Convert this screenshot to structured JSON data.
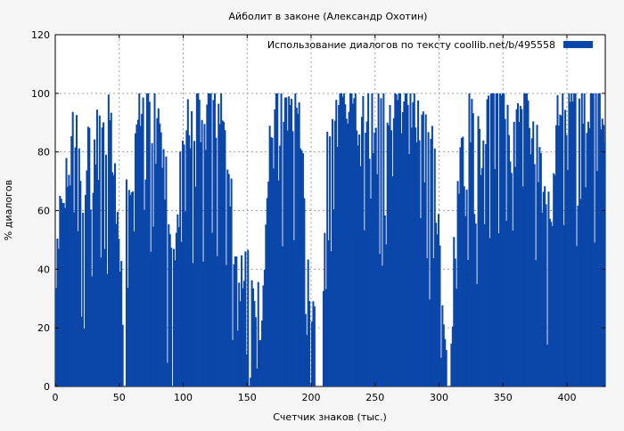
{
  "chart_data": {
    "type": "bar",
    "title": "Айболит в законе (Александр Охотин)",
    "xlabel": "Счетчик знаков (тыс.)",
    "ylabel": "% диалогов",
    "xlim": [
      0,
      430
    ],
    "ylim": [
      0,
      120
    ],
    "xticks": [
      "0",
      "50",
      "100",
      "150",
      "200",
      "250",
      "300",
      "350",
      "400"
    ],
    "yticks": [
      "0",
      "20",
      "40",
      "60",
      "80",
      "100",
      "120"
    ],
    "grid": true,
    "legend_position": "top-right",
    "series": [
      {
        "name": "Использование диалогов по тексту  coollib.net/b/495558",
        "color": "#0a47a9",
        "bin_width": 1,
        "envelope": [
          [
            0,
            36
          ],
          [
            3,
            45
          ],
          [
            6,
            70
          ],
          [
            10,
            60
          ],
          [
            14,
            90
          ],
          [
            18,
            85
          ],
          [
            22,
            60
          ],
          [
            26,
            95
          ],
          [
            30,
            80
          ],
          [
            34,
            95
          ],
          [
            38,
            78
          ],
          [
            42,
            92
          ],
          [
            46,
            65
          ],
          [
            50,
            40
          ],
          [
            53,
            12
          ],
          [
            56,
            65
          ],
          [
            60,
            55
          ],
          [
            64,
            90
          ],
          [
            68,
            100
          ],
          [
            72,
            98
          ],
          [
            76,
            85
          ],
          [
            80,
            95
          ],
          [
            84,
            75
          ],
          [
            88,
            55
          ],
          [
            91,
            30
          ],
          [
            94,
            45
          ],
          [
            98,
            75
          ],
          [
            102,
            92
          ],
          [
            106,
            85
          ],
          [
            110,
            98
          ],
          [
            114,
            82
          ],
          [
            118,
            90
          ],
          [
            122,
            100
          ],
          [
            126,
            88
          ],
          [
            130,
            100
          ],
          [
            134,
            70
          ],
          [
            138,
            55
          ],
          [
            142,
            40
          ],
          [
            146,
            25
          ],
          [
            150,
            45
          ],
          [
            154,
            30
          ],
          [
            158,
            20
          ],
          [
            161,
            8
          ],
          [
            164,
            55
          ],
          [
            168,
            80
          ],
          [
            172,
            98
          ],
          [
            176,
            90
          ],
          [
            180,
            98
          ],
          [
            184,
            92
          ],
          [
            188,
            100
          ],
          [
            192,
            75
          ],
          [
            196,
            50
          ],
          [
            200,
            30
          ],
          [
            203,
            20
          ],
          [
            206,
            5
          ],
          [
            209,
            15
          ],
          [
            212,
            75
          ],
          [
            216,
            92
          ],
          [
            220,
            88
          ],
          [
            224,
            98
          ],
          [
            228,
            95
          ],
          [
            232,
            98
          ],
          [
            236,
            90
          ],
          [
            240,
            92
          ],
          [
            244,
            98
          ],
          [
            248,
            94
          ],
          [
            252,
            100
          ],
          [
            256,
            85
          ],
          [
            260,
            95
          ],
          [
            264,
            98
          ],
          [
            268,
            90
          ],
          [
            272,
            96
          ],
          [
            276,
            88
          ],
          [
            280,
            95
          ],
          [
            284,
            85
          ],
          [
            288,
            90
          ],
          [
            292,
            80
          ],
          [
            296,
            75
          ],
          [
            300,
            50
          ],
          [
            303,
            20
          ],
          [
            306,
            0
          ],
          [
            309,
            0
          ],
          [
            312,
            40
          ],
          [
            316,
            75
          ],
          [
            320,
            88
          ],
          [
            324,
            92
          ],
          [
            328,
            85
          ],
          [
            332,
            70
          ],
          [
            336,
            80
          ],
          [
            340,
            90
          ],
          [
            344,
            98
          ],
          [
            348,
            100
          ],
          [
            352,
            90
          ],
          [
            356,
            80
          ],
          [
            360,
            85
          ],
          [
            364,
            92
          ],
          [
            368,
            98
          ],
          [
            372,
            95
          ],
          [
            376,
            80
          ],
          [
            380,
            70
          ],
          [
            384,
            60
          ],
          [
            388,
            50
          ],
          [
            392,
            85
          ],
          [
            396,
            95
          ],
          [
            400,
            92
          ],
          [
            404,
            98
          ],
          [
            408,
            96
          ],
          [
            412,
            95
          ],
          [
            416,
            92
          ],
          [
            420,
            98
          ],
          [
            424,
            95
          ],
          [
            428,
            92
          ],
          [
            430,
            66
          ]
        ]
      }
    ]
  }
}
